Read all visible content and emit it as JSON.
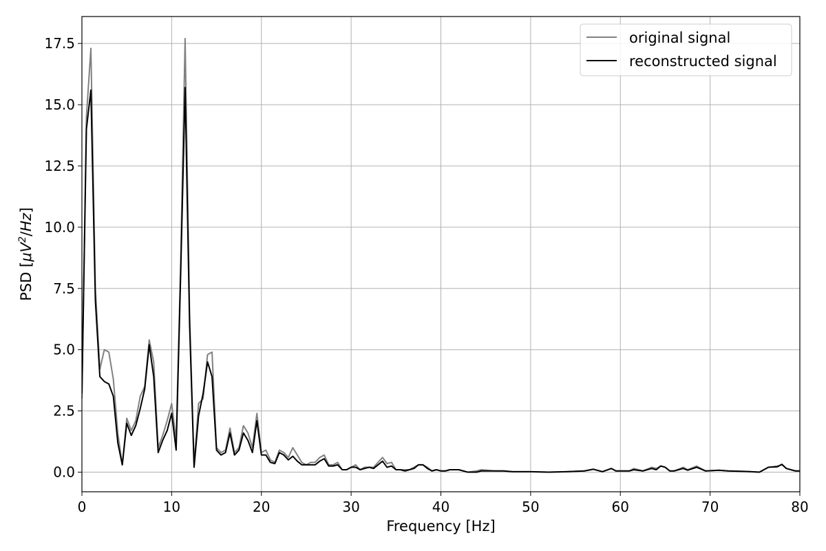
{
  "chart_data": {
    "type": "line",
    "title": "",
    "xlabel": "Frequency [Hz]",
    "ylabel_parts": {
      "prefix": "PSD [",
      "mu": "μ",
      "v": "V",
      "sup": "2",
      "suffix": "/",
      "hz": "Hz",
      "close": "]"
    },
    "xlim": [
      0,
      80
    ],
    "ylim": [
      -0.8,
      18.6
    ],
    "xticks": [
      0,
      10,
      20,
      30,
      40,
      50,
      60,
      70,
      80
    ],
    "xtick_labels": [
      "0",
      "10",
      "20",
      "30",
      "40",
      "50",
      "60",
      "70",
      "80"
    ],
    "yticks": [
      0,
      2.5,
      5,
      7.5,
      10,
      12.5,
      15,
      17.5
    ],
    "ytick_labels": [
      "0.0",
      "2.5",
      "5.0",
      "7.5",
      "10.0",
      "12.5",
      "15.0",
      "17.5"
    ],
    "grid": true,
    "legend_position": "top-right",
    "series": [
      {
        "name": "original signal",
        "color": "#808080",
        "points": [
          [
            0,
            3.0
          ],
          [
            0.5,
            14.5
          ],
          [
            1.0,
            17.3
          ],
          [
            1.5,
            7.5
          ],
          [
            2.0,
            4.2
          ],
          [
            2.5,
            5.0
          ],
          [
            3.0,
            4.9
          ],
          [
            3.5,
            3.8
          ],
          [
            4.0,
            1.6
          ],
          [
            4.5,
            0.3
          ],
          [
            5.0,
            2.2
          ],
          [
            5.5,
            1.7
          ],
          [
            6.0,
            2.1
          ],
          [
            6.5,
            3.1
          ],
          [
            7.0,
            3.5
          ],
          [
            7.5,
            5.4
          ],
          [
            8.0,
            4.5
          ],
          [
            8.5,
            1.0
          ],
          [
            9.0,
            1.5
          ],
          [
            9.5,
            2.1
          ],
          [
            10.0,
            2.8
          ],
          [
            10.5,
            1.3
          ],
          [
            11.0,
            8.5
          ],
          [
            11.5,
            17.7
          ],
          [
            12.0,
            6.5
          ],
          [
            12.5,
            0.3
          ],
          [
            13.0,
            2.8
          ],
          [
            13.5,
            3.0
          ],
          [
            14.0,
            4.8
          ],
          [
            14.5,
            4.9
          ],
          [
            15.0,
            1.0
          ],
          [
            15.5,
            0.8
          ],
          [
            16.0,
            0.9
          ],
          [
            16.5,
            1.8
          ],
          [
            17.0,
            0.8
          ],
          [
            17.5,
            1.0
          ],
          [
            18.0,
            1.9
          ],
          [
            18.5,
            1.6
          ],
          [
            19.0,
            1.0
          ],
          [
            19.5,
            2.4
          ],
          [
            20.0,
            0.8
          ],
          [
            20.5,
            0.9
          ],
          [
            21.0,
            0.5
          ],
          [
            21.5,
            0.4
          ],
          [
            22.0,
            0.9
          ],
          [
            22.5,
            0.8
          ],
          [
            23.0,
            0.6
          ],
          [
            23.5,
            1.0
          ],
          [
            24.0,
            0.7
          ],
          [
            24.5,
            0.4
          ],
          [
            25.0,
            0.3
          ],
          [
            25.5,
            0.4
          ],
          [
            26.0,
            0.4
          ],
          [
            26.5,
            0.6
          ],
          [
            27.0,
            0.7
          ],
          [
            27.5,
            0.3
          ],
          [
            28.0,
            0.3
          ],
          [
            28.5,
            0.4
          ],
          [
            29.0,
            0.1
          ],
          [
            29.5,
            0.1
          ],
          [
            30.0,
            0.2
          ],
          [
            30.5,
            0.3
          ],
          [
            31.0,
            0.1
          ],
          [
            31.5,
            0.2
          ],
          [
            32.0,
            0.2
          ],
          [
            32.5,
            0.2
          ],
          [
            33.0,
            0.4
          ],
          [
            33.5,
            0.6
          ],
          [
            34.0,
            0.35
          ],
          [
            34.5,
            0.4
          ],
          [
            35.0,
            0.1
          ],
          [
            35.5,
            0.1
          ],
          [
            36.0,
            0.1
          ],
          [
            36.5,
            0.1
          ],
          [
            37.0,
            0.2
          ],
          [
            37.5,
            0.3
          ],
          [
            38.0,
            0.3
          ],
          [
            38.5,
            0.2
          ],
          [
            39.0,
            0.05
          ],
          [
            39.5,
            0.1
          ],
          [
            40.0,
            0.05
          ],
          [
            40.5,
            0.05
          ],
          [
            41.0,
            0.1
          ],
          [
            42.0,
            0.1
          ],
          [
            43.0,
            0.0
          ],
          [
            44.0,
            0.05
          ],
          [
            44.5,
            0.1
          ],
          [
            46.0,
            0.05
          ],
          [
            47.0,
            0.05
          ],
          [
            48.0,
            0.02
          ],
          [
            50.0,
            0.02
          ],
          [
            52.0,
            0.0
          ],
          [
            54.0,
            0.02
          ],
          [
            56.0,
            0.05
          ],
          [
            57.0,
            0.12
          ],
          [
            58.0,
            0.02
          ],
          [
            59.0,
            0.15
          ],
          [
            59.5,
            0.05
          ],
          [
            61.0,
            0.05
          ],
          [
            61.5,
            0.15
          ],
          [
            62.5,
            0.05
          ],
          [
            63.5,
            0.2
          ],
          [
            64.0,
            0.15
          ],
          [
            64.5,
            0.25
          ],
          [
            65.0,
            0.2
          ],
          [
            65.5,
            0.05
          ],
          [
            66.0,
            0.05
          ],
          [
            67.0,
            0.2
          ],
          [
            67.5,
            0.1
          ],
          [
            68.5,
            0.25
          ],
          [
            69.5,
            0.05
          ],
          [
            71.0,
            0.08
          ],
          [
            72.0,
            0.05
          ],
          [
            74.0,
            0.03
          ],
          [
            75.5,
            0.0
          ],
          [
            76.5,
            0.2
          ],
          [
            77.5,
            0.25
          ],
          [
            78.0,
            0.3
          ],
          [
            78.5,
            0.15
          ],
          [
            79.5,
            0.05
          ],
          [
            80.0,
            0.05
          ]
        ]
      },
      {
        "name": "reconstructed signal",
        "color": "#000000",
        "points": [
          [
            0,
            3.2
          ],
          [
            0.5,
            14.0
          ],
          [
            1.0,
            15.6
          ],
          [
            1.5,
            7.0
          ],
          [
            2.0,
            3.9
          ],
          [
            2.5,
            3.7
          ],
          [
            3.0,
            3.6
          ],
          [
            3.5,
            3.1
          ],
          [
            4.0,
            1.2
          ],
          [
            4.5,
            0.3
          ],
          [
            5.0,
            2.0
          ],
          [
            5.5,
            1.5
          ],
          [
            6.0,
            1.9
          ],
          [
            6.5,
            2.6
          ],
          [
            7.0,
            3.4
          ],
          [
            7.5,
            5.2
          ],
          [
            8.0,
            3.9
          ],
          [
            8.5,
            0.8
          ],
          [
            9.0,
            1.3
          ],
          [
            9.5,
            1.7
          ],
          [
            10.0,
            2.4
          ],
          [
            10.5,
            0.9
          ],
          [
            11.0,
            8.0
          ],
          [
            11.5,
            15.7
          ],
          [
            12.0,
            6.0
          ],
          [
            12.5,
            0.2
          ],
          [
            13.0,
            2.3
          ],
          [
            13.5,
            3.2
          ],
          [
            14.0,
            4.5
          ],
          [
            14.5,
            3.9
          ],
          [
            15.0,
            0.9
          ],
          [
            15.5,
            0.7
          ],
          [
            16.0,
            0.8
          ],
          [
            16.5,
            1.6
          ],
          [
            17.0,
            0.7
          ],
          [
            17.5,
            0.9
          ],
          [
            18.0,
            1.6
          ],
          [
            18.5,
            1.3
          ],
          [
            19.0,
            0.8
          ],
          [
            19.5,
            2.1
          ],
          [
            20.0,
            0.7
          ],
          [
            20.5,
            0.7
          ],
          [
            21.0,
            0.4
          ],
          [
            21.5,
            0.35
          ],
          [
            22.0,
            0.8
          ],
          [
            22.5,
            0.7
          ],
          [
            23.0,
            0.5
          ],
          [
            23.5,
            0.65
          ],
          [
            24.0,
            0.45
          ],
          [
            24.5,
            0.3
          ],
          [
            25.0,
            0.3
          ],
          [
            25.5,
            0.3
          ],
          [
            26.0,
            0.3
          ],
          [
            26.5,
            0.45
          ],
          [
            27.0,
            0.55
          ],
          [
            27.5,
            0.25
          ],
          [
            28.0,
            0.25
          ],
          [
            28.5,
            0.3
          ],
          [
            29.0,
            0.1
          ],
          [
            29.5,
            0.1
          ],
          [
            30.0,
            0.2
          ],
          [
            30.5,
            0.2
          ],
          [
            31.0,
            0.1
          ],
          [
            31.5,
            0.15
          ],
          [
            32.0,
            0.2
          ],
          [
            32.5,
            0.15
          ],
          [
            33.0,
            0.3
          ],
          [
            33.5,
            0.45
          ],
          [
            34.0,
            0.2
          ],
          [
            34.5,
            0.25
          ],
          [
            35.0,
            0.1
          ],
          [
            35.5,
            0.1
          ],
          [
            36.0,
            0.05
          ],
          [
            36.5,
            0.1
          ],
          [
            37.0,
            0.15
          ],
          [
            37.5,
            0.3
          ],
          [
            38.0,
            0.3
          ],
          [
            38.5,
            0.15
          ],
          [
            39.0,
            0.05
          ],
          [
            39.5,
            0.1
          ],
          [
            40.0,
            0.05
          ],
          [
            40.5,
            0.05
          ],
          [
            41.0,
            0.1
          ],
          [
            42.0,
            0.1
          ],
          [
            43.0,
            0.0
          ],
          [
            44.0,
            0.0
          ],
          [
            44.5,
            0.05
          ],
          [
            46.0,
            0.05
          ],
          [
            47.0,
            0.05
          ],
          [
            48.0,
            0.02
          ],
          [
            50.0,
            0.02
          ],
          [
            52.0,
            0.0
          ],
          [
            54.0,
            0.02
          ],
          [
            56.0,
            0.05
          ],
          [
            57.0,
            0.12
          ],
          [
            58.0,
            0.02
          ],
          [
            59.0,
            0.15
          ],
          [
            59.5,
            0.05
          ],
          [
            61.0,
            0.05
          ],
          [
            61.5,
            0.1
          ],
          [
            62.5,
            0.05
          ],
          [
            63.5,
            0.15
          ],
          [
            64.0,
            0.1
          ],
          [
            64.5,
            0.25
          ],
          [
            65.0,
            0.2
          ],
          [
            65.5,
            0.05
          ],
          [
            66.0,
            0.05
          ],
          [
            67.0,
            0.15
          ],
          [
            67.5,
            0.08
          ],
          [
            68.5,
            0.2
          ],
          [
            69.5,
            0.05
          ],
          [
            71.0,
            0.08
          ],
          [
            72.0,
            0.05
          ],
          [
            74.0,
            0.03
          ],
          [
            75.5,
            0.0
          ],
          [
            76.5,
            0.2
          ],
          [
            77.5,
            0.22
          ],
          [
            78.0,
            0.32
          ],
          [
            78.5,
            0.15
          ],
          [
            79.5,
            0.05
          ],
          [
            80.0,
            0.05
          ]
        ]
      }
    ]
  }
}
